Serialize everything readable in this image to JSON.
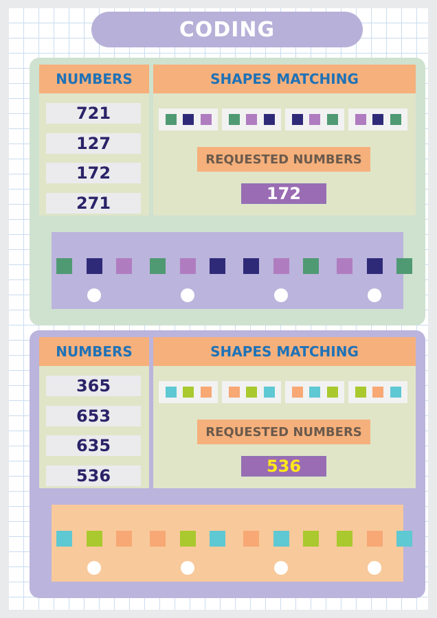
{
  "title": "CODING",
  "colors": {
    "sec1": {
      "dark": "#2f2a78",
      "medium": "#4f9a73",
      "light": "#b07cc0"
    },
    "sec2": {
      "teal": "#5ec8d3",
      "lime": "#a9c92e",
      "orange": "#f7a875"
    }
  },
  "sections": [
    {
      "numbers_header": "NUMBERS",
      "numbers": [
        "721",
        "127",
        "172",
        "271"
      ],
      "shapes_header": "SHAPES MATCHING",
      "legend": [
        [
          "#4f9a73",
          "#2f2a78",
          "#b07cc0"
        ],
        [
          "#4f9a73",
          "#b07cc0",
          "#2f2a78"
        ],
        [
          "#2f2a78",
          "#b07cc0",
          "#4f9a73"
        ],
        [
          "#b07cc0",
          "#2f2a78",
          "#4f9a73"
        ]
      ],
      "requested_label": "REQUESTED NUMBERS",
      "requested_value": "172",
      "requested_value_color": "#ffffff",
      "requested_value_bg": "#9a6cb3",
      "answers": [
        [
          "#4f9a73",
          "#2f2a78",
          "#b07cc0"
        ],
        [
          "#4f9a73",
          "#b07cc0",
          "#2f2a78"
        ],
        [
          "#2f2a78",
          "#b07cc0",
          "#4f9a73"
        ],
        [
          "#b07cc0",
          "#2f2a78",
          "#4f9a73"
        ]
      ]
    },
    {
      "numbers_header": "NUMBERS",
      "numbers": [
        "365",
        "653",
        "635",
        "536"
      ],
      "shapes_header": "SHAPES MATCHING",
      "legend": [
        [
          "#5ec8d3",
          "#a9c92e",
          "#f7a875"
        ],
        [
          "#f7a875",
          "#a9c92e",
          "#5ec8d3"
        ],
        [
          "#f7a875",
          "#5ec8d3",
          "#a9c92e"
        ],
        [
          "#a9c92e",
          "#f7a875",
          "#5ec8d3"
        ]
      ],
      "requested_label": "REQUESTED NUMBERS",
      "requested_value": "536",
      "requested_value_color": "#ffe81a",
      "requested_value_bg": "#9a6cb3",
      "answers": [
        [
          "#5ec8d3",
          "#a9c92e",
          "#f7a875"
        ],
        [
          "#f7a875",
          "#a9c92e",
          "#5ec8d3"
        ],
        [
          "#f7a875",
          "#5ec8d3",
          "#a9c92e"
        ],
        [
          "#a9c92e",
          "#f7a875",
          "#5ec8d3"
        ]
      ]
    }
  ]
}
